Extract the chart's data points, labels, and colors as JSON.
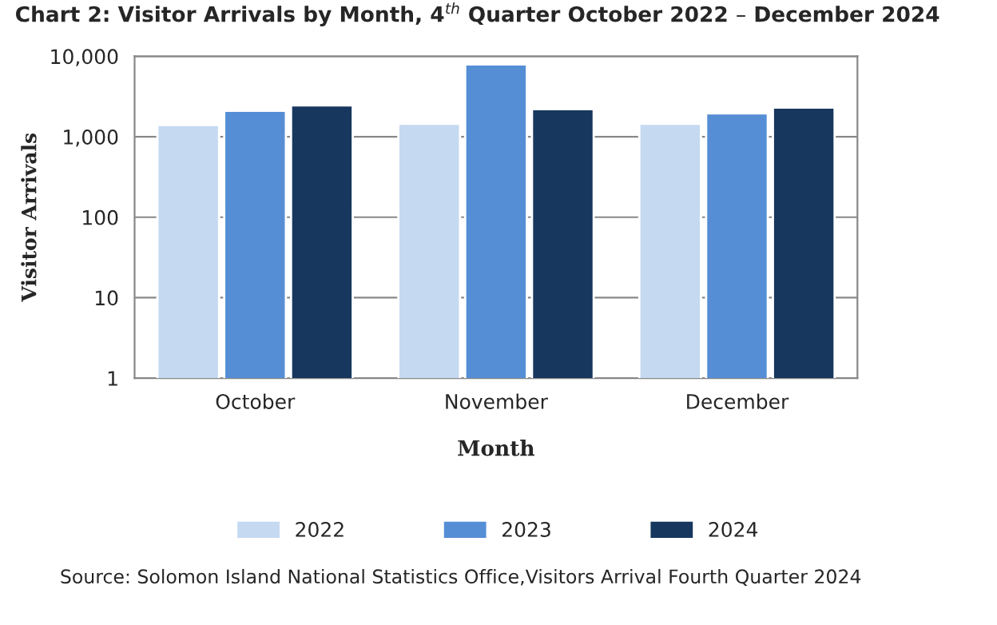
{
  "chart_data": {
    "type": "bar",
    "title": "Chart 2: Visitor Arrivals by Month, 4$^{th}$ Quarter October 2022 – December 2024",
    "xlabel": "Month",
    "ylabel": "Visitor Arrivals",
    "categories": [
      "October",
      "November",
      "December"
    ],
    "series": [
      {
        "name": "2022",
        "color": "#c5d9f1",
        "values": [
          1400,
          1450,
          1450
        ]
      },
      {
        "name": "2023",
        "color": "#558ed5",
        "values": [
          2100,
          7900,
          1950
        ]
      },
      {
        "name": "2024",
        "color": "#17375e",
        "values": [
          2450,
          2200,
          2300
        ]
      }
    ],
    "log": true,
    "ylim": [
      1,
      10000
    ],
    "yticks": [
      1,
      10,
      100,
      {
        "value": 1000,
        "label": "1,000"
      },
      {
        "value": 10000,
        "label": "10,000"
      }
    ],
    "grid": "y",
    "legend": "bottom",
    "annotations": [
      "Source: Solomon Island National Statistics Office,Visitors Arrival Fourth Quarter 2024"
    ]
  }
}
